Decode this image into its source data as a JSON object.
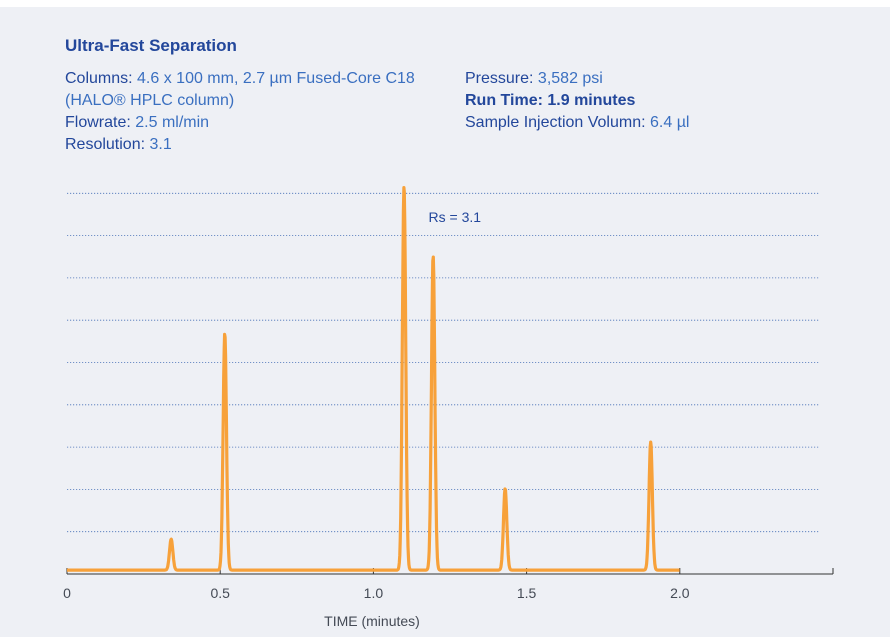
{
  "header": {
    "title": "Ultra-Fast Separation",
    "columns_label": "Columns:",
    "columns_value": "4.6 x 100 mm, 2.7 µm Fused-Core C18 (HALO® HPLC column)",
    "flowrate_label": "Flowrate:",
    "flowrate_value": "2.5 ml/min",
    "resolution_label": "Resolution:",
    "resolution_value": "3.1",
    "pressure_label": "Pressure:",
    "pressure_value": "3,582 psi",
    "runtime_text": "Run Time: 1.9 minutes",
    "injection_label": "Sample Injection Volumn:",
    "injection_value": "6.4 µl"
  },
  "chart_data": {
    "type": "line",
    "xlabel": "TIME (minutes)",
    "xlim": [
      0,
      2.5
    ],
    "ylim": [
      0,
      100
    ],
    "x_ticks": [
      0,
      0.5,
      1.0,
      1.5,
      2.0
    ],
    "x_tick_labels": [
      "0",
      "0.5",
      "1.0",
      "1.5",
      "2.0"
    ],
    "grid": "horizontal dotted",
    "line_color": "#f7a13a",
    "baseline": 1,
    "trace_end": 2.0,
    "peaks": [
      {
        "x": 0.34,
        "height": 9
      },
      {
        "x": 0.515,
        "height": 62
      },
      {
        "x": 1.1,
        "height": 100
      },
      {
        "x": 1.195,
        "height": 82
      },
      {
        "x": 1.43,
        "height": 22
      },
      {
        "x": 1.905,
        "height": 34
      }
    ],
    "annotations": [
      {
        "text": "Rs = 3.1",
        "x": 1.18,
        "y": 92
      }
    ]
  }
}
